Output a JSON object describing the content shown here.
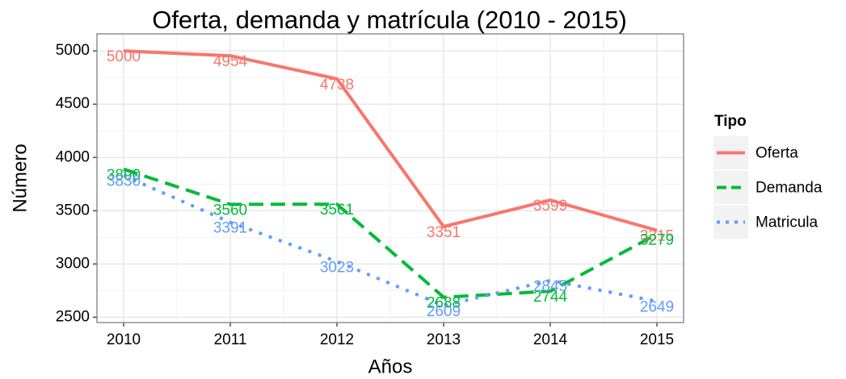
{
  "chart_data": {
    "type": "line",
    "title": "Oferta, demanda y matrícula (2010 - 2015)",
    "x_label": "Años",
    "y_label": "Número",
    "x": [
      2010,
      2011,
      2012,
      2013,
      2014,
      2015
    ],
    "xlim": [
      2009.75,
      2015.25
    ],
    "xticks": [
      2010,
      2011,
      2012,
      2013,
      2014,
      2015
    ],
    "ylim": [
      2450,
      5160
    ],
    "yticks": [
      2500,
      3000,
      3500,
      4000,
      4500,
      5000
    ],
    "grid": true,
    "legend_title": "Tipo",
    "legend_position": "right",
    "series": [
      {
        "name": "Oferta",
        "color": "#F8766D",
        "dash": "solid",
        "values": [
          5000,
          4954,
          4738,
          3351,
          3599,
          3315
        ]
      },
      {
        "name": "Demanda",
        "color": "#00BA38",
        "dash": "dashed",
        "values": [
          3890,
          3560,
          3561,
          2688,
          2744,
          3279
        ]
      },
      {
        "name": "Matricula",
        "color": "#619CFF",
        "dash": "dotted",
        "values": [
          3830,
          3391,
          3023,
          2609,
          2845,
          2649
        ]
      }
    ]
  }
}
